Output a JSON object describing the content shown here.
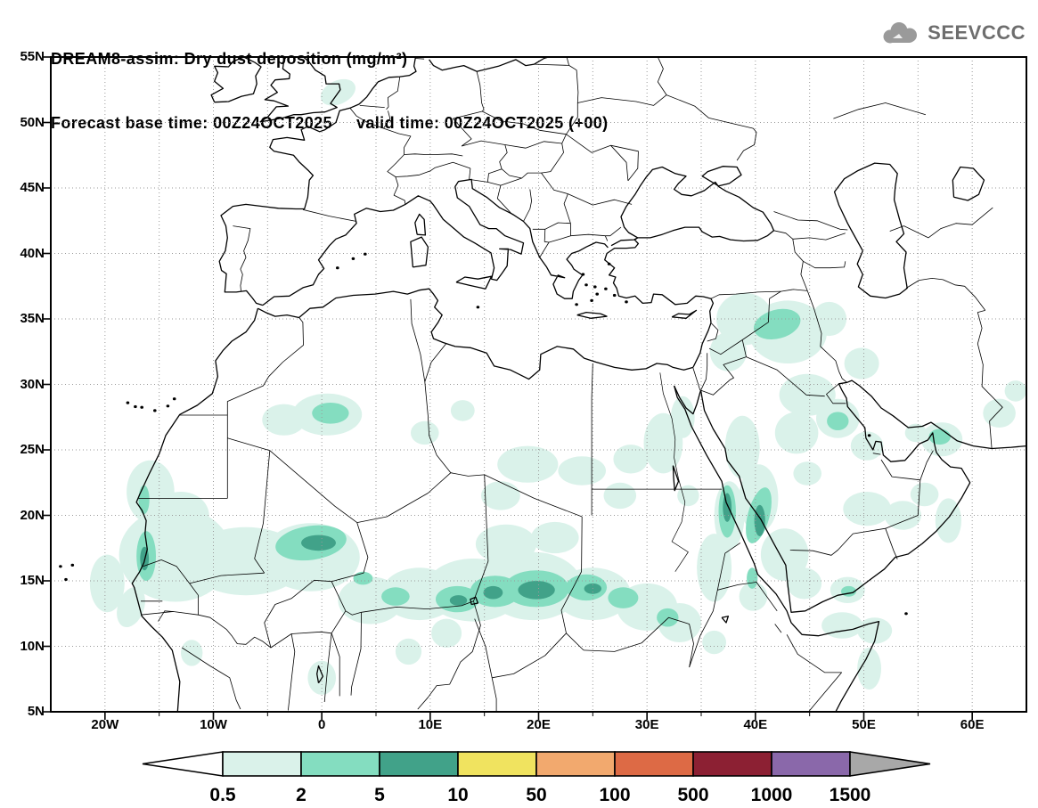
{
  "header": {
    "title_line1": "DREAM8-assim: Dry dust deposition (mg/m²)",
    "title_line2": "Forecast base time: 00Z24OCT2025     valid time: 00Z24OCT2025 (+00)",
    "logo_text": "SEEVCCC"
  },
  "map": {
    "extent": {
      "lon_min": -25,
      "lon_max": 65,
      "lat_min": 5,
      "lat_max": 55
    },
    "grid_step_deg": 5,
    "lat_ticks": [
      {
        "label": "55N",
        "value": 55
      },
      {
        "label": "50N",
        "value": 50
      },
      {
        "label": "45N",
        "value": 45
      },
      {
        "label": "40N",
        "value": 40
      },
      {
        "label": "35N",
        "value": 35
      },
      {
        "label": "30N",
        "value": 30
      },
      {
        "label": "25N",
        "value": 25
      },
      {
        "label": "20N",
        "value": 20
      },
      {
        "label": "15N",
        "value": 15
      },
      {
        "label": "10N",
        "value": 10
      },
      {
        "label": "5N",
        "value": 5
      }
    ],
    "lon_ticks": [
      {
        "label": "20W",
        "value": -20
      },
      {
        "label": "10W",
        "value": -10
      },
      {
        "label": "0",
        "value": 0
      },
      {
        "label": "10E",
        "value": 10
      },
      {
        "label": "20E",
        "value": 20
      },
      {
        "label": "30E",
        "value": 30
      },
      {
        "label": "40E",
        "value": 40
      },
      {
        "label": "50E",
        "value": 50
      },
      {
        "label": "60E",
        "value": 60
      }
    ]
  },
  "colorbar": {
    "levels": [
      "0.5",
      "2",
      "5",
      "10",
      "50",
      "100",
      "500",
      "1000",
      "1500"
    ],
    "below_color": "#ffffff",
    "segment_colors": [
      "#daf2ea",
      "#84ddc0",
      "#41a289",
      "#f0e35f",
      "#f2a96e",
      "#dd6a45",
      "#8c2033",
      "#8a68aa"
    ],
    "above_color": "#a8a8a8",
    "grid_color": "#9a9a9a"
  }
}
